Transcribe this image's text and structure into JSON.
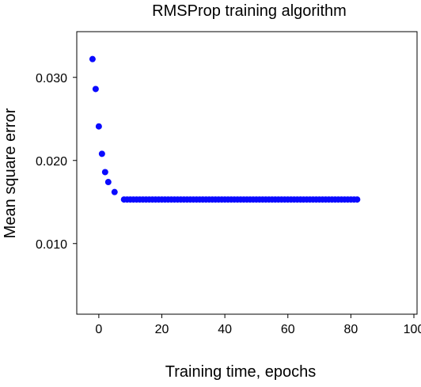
{
  "chart_data": {
    "type": "scatter",
    "title": "RMSProp training algorithm",
    "xlabel": "Training time, epochs",
    "ylabel": "Mean square error",
    "xlim": [
      -7,
      101
    ],
    "ylim": [
      0.0015,
      0.0355
    ],
    "xticks": [
      0,
      20,
      40,
      60,
      80,
      100
    ],
    "yticks": [
      0.01,
      0.02,
      0.03
    ],
    "xtick_labels": [
      "0",
      "20",
      "40",
      "60",
      "80",
      "100"
    ],
    "ytick_labels": [
      "0.010",
      "0.020",
      "0.030"
    ],
    "grid": false,
    "color": "#0a0aff",
    "points_x": [
      -2,
      -1,
      0,
      1,
      2,
      3,
      5,
      8,
      9,
      10,
      11,
      12,
      13,
      14,
      15,
      16,
      17,
      18,
      19,
      20,
      21,
      22,
      23,
      24,
      25,
      26,
      27,
      28,
      29,
      30,
      31,
      32,
      33,
      34,
      35,
      36,
      37,
      38,
      39,
      40,
      41,
      42,
      43,
      44,
      45,
      46,
      47,
      48,
      49,
      50,
      51,
      52,
      53,
      54,
      55,
      56,
      57,
      58,
      59,
      60,
      61,
      62,
      63,
      64,
      65,
      66,
      67,
      68,
      69,
      70,
      71,
      72,
      73,
      74,
      75,
      76,
      77,
      78,
      79,
      80,
      81,
      82
    ],
    "points_y": [
      0.0322,
      0.0286,
      0.0241,
      0.0208,
      0.0186,
      0.0174,
      0.0162,
      0.0153,
      0.0153,
      0.0153,
      0.0153,
      0.0153,
      0.0153,
      0.0153,
      0.0153,
      0.0153,
      0.0153,
      0.0153,
      0.0153,
      0.0153,
      0.0153,
      0.0153,
      0.0153,
      0.0153,
      0.0153,
      0.0153,
      0.0153,
      0.0153,
      0.0153,
      0.0153,
      0.0153,
      0.0153,
      0.0153,
      0.0153,
      0.0153,
      0.0153,
      0.0153,
      0.0153,
      0.0153,
      0.0153,
      0.0153,
      0.0153,
      0.0153,
      0.0153,
      0.0153,
      0.0153,
      0.0153,
      0.0153,
      0.0153,
      0.0153,
      0.0153,
      0.0153,
      0.0153,
      0.0153,
      0.0153,
      0.0153,
      0.0153,
      0.0153,
      0.0153,
      0.0153,
      0.0153,
      0.0153,
      0.0153,
      0.0153,
      0.0153,
      0.0153,
      0.0153,
      0.0153,
      0.0153,
      0.0153,
      0.0153,
      0.0153,
      0.0153,
      0.0153,
      0.0153,
      0.0153,
      0.0153,
      0.0153,
      0.0153,
      0.0153,
      0.0153,
      0.0153
    ]
  }
}
